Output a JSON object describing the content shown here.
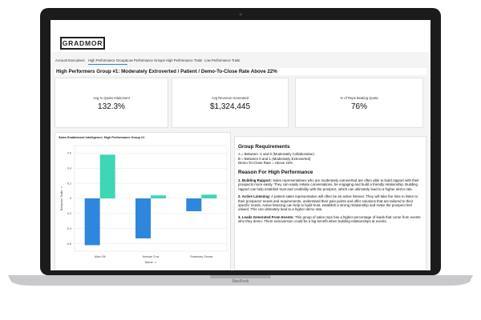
{
  "header": {
    "logo": "GRADMOR"
  },
  "tabs": [
    "Account Executives",
    "High Performance Groups",
    "Low Performance Groups",
    "High Performance Traits",
    "Low Performance Traits"
  ],
  "title": "High Performers Group #1: Moderately Extroverted / Patient / Demo-To-Close Rate Above 22%",
  "kpis": [
    {
      "label": "Avg % Quota Attainment",
      "value": "132.3%"
    },
    {
      "label": "Avg Revenue Generated",
      "value": "$1,324,445"
    },
    {
      "label": "% of Reps Beating Quota",
      "value": "76%"
    }
  ],
  "chart_data": {
    "type": "bar",
    "title": "Sales Enablement Intelligence: High Performance Group #1",
    "x_label": "Name ->",
    "y_label": "Behavior Traits ->",
    "categories": [
      "Alice Gill",
      "Herman Cruz",
      "Rosemary Groves"
    ],
    "series": [
      {
        "color": "#2f86dd",
        "values": [
          -0.62,
          -0.53,
          -0.17
        ]
      },
      {
        "color": "#3fd6b6",
        "values": [
          0.58,
          0.04,
          0.05
        ]
      }
    ],
    "ylim": [
      -0.7,
      0.7
    ],
    "yticks": [
      -0.6,
      -0.4,
      -0.2,
      0,
      0.2,
      0.4,
      0.6
    ],
    "grid": true
  },
  "requirements": {
    "heading": "Group Requirements",
    "lines": [
      "A = Between -1 and 0 (Moderately Collaborative)",
      "B = Between 0 and 1 (Moderately Extroverted)",
      "Demo-To-Close Rate = Above 22%"
    ],
    "reason_heading": "Reason For High Performance",
    "reasons": [
      {
        "bold": "1. Building Rapport:",
        "text": "Sales representatives who are moderately extroverted are often able to build rapport with their prospects more easily. They can easily initiate conversations, be engaging and build a friendly relationship. Building rapport can help establish trust and credibility with the prospect, which can ultimately lead to a higher demo rate."
      },
      {
        "bold": "2. Active Listening:",
        "text": "A patient sales representative will often be an active listener. They will take the time to listen to their prospects' needs and requirements, understand their pain points and offer solutions that are tailored to their specific needs. Active listening can help to build trust, establish a strong relationship and make the prospect feel valued. This can ultimately lead to a higher demo rate."
      },
      {
        "bold": "3. Leads Generated From Events:",
        "text": "This group of sales reps has a higher percentage of leads that come from events who they demo. There extroversion could be a big benefit when building relationships at events."
      }
    ]
  },
  "laptop": {
    "brand": "MacBook"
  }
}
